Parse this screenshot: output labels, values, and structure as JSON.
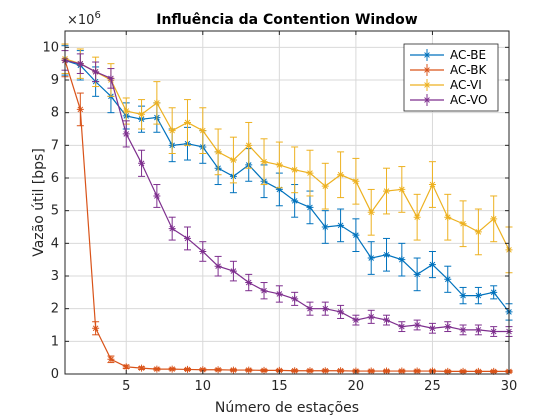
{
  "chart_data": {
    "type": "line",
    "title": "Influência da Contention Window",
    "xlabel": "Número de estações",
    "ylabel": "Vazão útil [bps]",
    "y_multiplier_label": "×10",
    "y_multiplier_exponent": "6",
    "xlim": [
      1,
      30
    ],
    "ylim": [
      0,
      10500000
    ],
    "x_ticks": [
      5,
      10,
      15,
      20,
      25,
      30
    ],
    "y_ticks": [
      0,
      1000000,
      2000000,
      3000000,
      4000000,
      5000000,
      6000000,
      7000000,
      8000000,
      9000000,
      10000000
    ],
    "x_tick_labels": [
      "5",
      "10",
      "15",
      "20",
      "25",
      "30"
    ],
    "y_tick_labels": [
      "0",
      "1",
      "2",
      "3",
      "4",
      "5",
      "6",
      "7",
      "8",
      "9",
      "10"
    ],
    "grid": true,
    "legend_position": "top-right",
    "x": [
      1,
      2,
      3,
      4,
      5,
      6,
      7,
      8,
      9,
      10,
      11,
      12,
      13,
      14,
      15,
      16,
      17,
      18,
      19,
      20,
      21,
      22,
      23,
      24,
      25,
      26,
      27,
      28,
      29,
      30
    ],
    "series": [
      {
        "name": "AC-BE",
        "color": "#0072BD",
        "values": [
          9600000,
          9450000,
          8950000,
          8500000,
          7900000,
          7800000,
          7850000,
          7000000,
          7050000,
          6950000,
          6300000,
          6050000,
          6400000,
          5900000,
          5650000,
          5300000,
          5100000,
          4500000,
          4550000,
          4250000,
          3550000,
          3650000,
          3500000,
          3050000,
          3350000,
          2900000,
          2400000,
          2400000,
          2500000,
          1900000
        ],
        "errors": [
          450000,
          450000,
          450000,
          500000,
          400000,
          400000,
          450000,
          500000,
          500000,
          500000,
          500000,
          500000,
          500000,
          500000,
          500000,
          500000,
          500000,
          500000,
          500000,
          500000,
          500000,
          500000,
          500000,
          500000,
          400000,
          400000,
          250000,
          250000,
          200000,
          250000
        ]
      },
      {
        "name": "AC-BK",
        "color": "#D95319",
        "values": [
          9600000,
          8100000,
          1400000,
          450000,
          220000,
          180000,
          150000,
          150000,
          140000,
          130000,
          130000,
          120000,
          120000,
          110000,
          110000,
          100000,
          100000,
          100000,
          100000,
          90000,
          90000,
          90000,
          90000,
          90000,
          90000,
          80000,
          80000,
          80000,
          80000,
          80000
        ],
        "errors": [
          500000,
          500000,
          200000,
          100000,
          50000,
          40000,
          30000,
          30000,
          30000,
          30000,
          30000,
          30000,
          30000,
          30000,
          30000,
          30000,
          30000,
          30000,
          30000,
          30000,
          30000,
          30000,
          30000,
          30000,
          30000,
          30000,
          30000,
          30000,
          30000,
          30000
        ]
      },
      {
        "name": "AC-VI",
        "color": "#EDB120",
        "values": [
          9650000,
          9500000,
          9250000,
          9000000,
          8050000,
          7950000,
          8300000,
          7450000,
          7700000,
          7450000,
          6800000,
          6550000,
          7000000,
          6500000,
          6400000,
          6250000,
          6150000,
          5750000,
          6100000,
          5900000,
          4950000,
          5600000,
          5650000,
          4800000,
          5800000,
          4800000,
          4600000,
          4350000,
          4750000,
          3800000
        ],
        "errors": [
          450000,
          450000,
          450000,
          500000,
          400000,
          450000,
          650000,
          700000,
          700000,
          700000,
          700000,
          700000,
          700000,
          700000,
          700000,
          700000,
          700000,
          700000,
          700000,
          700000,
          700000,
          700000,
          700000,
          700000,
          700000,
          700000,
          700000,
          700000,
          700000,
          700000
        ]
      },
      {
        "name": "AC-VO",
        "color": "#7E2F8E",
        "values": [
          9600000,
          9500000,
          9250000,
          9050000,
          7350000,
          6450000,
          5450000,
          4450000,
          4150000,
          3750000,
          3300000,
          3150000,
          2800000,
          2550000,
          2450000,
          2300000,
          2000000,
          2000000,
          1900000,
          1650000,
          1750000,
          1650000,
          1450000,
          1500000,
          1400000,
          1450000,
          1350000,
          1350000,
          1300000,
          1300000
        ],
        "errors": [
          300000,
          300000,
          300000,
          300000,
          400000,
          400000,
          350000,
          350000,
          350000,
          300000,
          300000,
          300000,
          250000,
          250000,
          250000,
          200000,
          200000,
          200000,
          200000,
          150000,
          200000,
          150000,
          150000,
          150000,
          150000,
          150000,
          150000,
          150000,
          150000,
          150000
        ]
      }
    ]
  }
}
